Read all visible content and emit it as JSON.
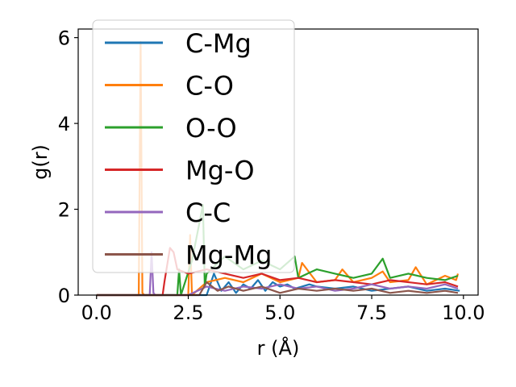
{
  "chart_data": {
    "type": "line",
    "title": "",
    "xlabel": "r (Å)",
    "ylabel": "g(r)",
    "xlim": [
      -0.5,
      10.4
    ],
    "ylim": [
      0,
      6.2
    ],
    "xticks": [
      0.0,
      2.5,
      5.0,
      7.5,
      10.0
    ],
    "xtick_labels": [
      "0.0",
      "2.5",
      "5.0",
      "7.5",
      "10.0"
    ],
    "yticks": [
      0,
      2,
      4,
      6
    ],
    "ytick_labels": [
      "0",
      "2",
      "4",
      "6"
    ],
    "grid": false,
    "legend_position": "top-left",
    "series": [
      {
        "name": "C-Mg",
        "color": "#1f77b4",
        "x": [
          0,
          3.0,
          3.2,
          3.4,
          3.6,
          3.8,
          4.0,
          4.2,
          4.4,
          4.6,
          4.8,
          5.0,
          5.2,
          5.4,
          5.6,
          5.8,
          6.0,
          6.5,
          7.0,
          7.5,
          8.0,
          8.5,
          9.0,
          9.5,
          9.9
        ],
        "y": [
          0,
          0,
          0.5,
          0.1,
          0.3,
          0.05,
          0.25,
          0.15,
          0.35,
          0.1,
          0.3,
          0.2,
          0.25,
          0.15,
          0.2,
          0.25,
          0.2,
          0.15,
          0.2,
          0.1,
          0.15,
          0.2,
          0.1,
          0.15,
          0.1
        ]
      },
      {
        "name": "C-O",
        "color": "#ff7f0e",
        "x": [
          0,
          1.15,
          1.2,
          1.25,
          1.3,
          2.5,
          2.55,
          2.6,
          3.0,
          3.5,
          4.0,
          4.5,
          5.0,
          5.5,
          5.6,
          6.0,
          6.5,
          6.7,
          7.0,
          7.5,
          7.8,
          8.0,
          8.5,
          8.7,
          9.0,
          9.5,
          9.8,
          9.85
        ],
        "y": [
          0,
          0,
          5.9,
          0.05,
          0,
          0,
          1.4,
          0,
          0.3,
          0.4,
          0.3,
          0.5,
          0.3,
          0.4,
          0.75,
          0.3,
          0.35,
          0.6,
          0.3,
          0.4,
          0.55,
          0.3,
          0.35,
          0.65,
          0.25,
          0.45,
          0.35,
          0.5
        ]
      },
      {
        "name": "O-O",
        "color": "#2ca02c",
        "x": [
          0,
          2.2,
          2.25,
          2.3,
          2.6,
          2.9,
          2.95,
          3.0,
          3.5,
          4.0,
          4.5,
          5.0,
          5.4,
          5.5,
          6.0,
          6.5,
          7.0,
          7.5,
          7.8,
          8.0,
          8.5,
          9.0,
          9.5,
          9.85
        ],
        "y": [
          0,
          0,
          0.6,
          0,
          0.8,
          2.1,
          0.2,
          0.5,
          0.9,
          0.6,
          0.8,
          0.6,
          0.9,
          0.4,
          0.6,
          0.5,
          0.4,
          0.5,
          0.85,
          0.4,
          0.5,
          0.4,
          0.35,
          0.45
        ]
      },
      {
        "name": "Mg-O",
        "color": "#d62728",
        "x": [
          0,
          1.8,
          1.85,
          2.0,
          2.1,
          2.2,
          2.5,
          3.0,
          3.5,
          4.0,
          4.5,
          5.0,
          5.5,
          6.0,
          6.5,
          7.0,
          7.5,
          8.0,
          8.5,
          9.0,
          9.5,
          9.85
        ],
        "y": [
          0,
          0,
          0.3,
          1.1,
          1.0,
          0.6,
          0.5,
          0.6,
          0.5,
          0.4,
          0.5,
          0.35,
          0.4,
          0.3,
          0.35,
          0.3,
          0.25,
          0.35,
          0.3,
          0.25,
          0.3,
          0.2
        ]
      },
      {
        "name": "C-C",
        "color": "#9467bd",
        "x": [
          0,
          1.45,
          1.5,
          1.55,
          1.6,
          2.5,
          3.0,
          3.5,
          4.0,
          4.5,
          5.0,
          5.5,
          6.0,
          6.5,
          7.0,
          7.5,
          8.0,
          8.5,
          9.0,
          9.5,
          9.85
        ],
        "y": [
          0,
          0,
          1.0,
          0.05,
          0,
          0,
          0.2,
          0.1,
          0.2,
          0.15,
          0.25,
          0.15,
          0.2,
          0.1,
          0.15,
          0.25,
          0.15,
          0.2,
          0.15,
          0.25,
          0.15
        ]
      },
      {
        "name": "Mg-Mg",
        "color": "#8c564b",
        "x": [
          0,
          2.8,
          3.0,
          3.3,
          3.6,
          4.0,
          4.5,
          5.0,
          5.5,
          6.0,
          6.5,
          7.0,
          7.5,
          8.0,
          8.5,
          9.0,
          9.5,
          9.85
        ],
        "y": [
          0,
          0,
          0.3,
          0.1,
          0.2,
          0.1,
          0.2,
          0.05,
          0.15,
          0.1,
          0.15,
          0.1,
          0.15,
          0.05,
          0.1,
          0.05,
          0.1,
          0.05
        ]
      }
    ]
  }
}
